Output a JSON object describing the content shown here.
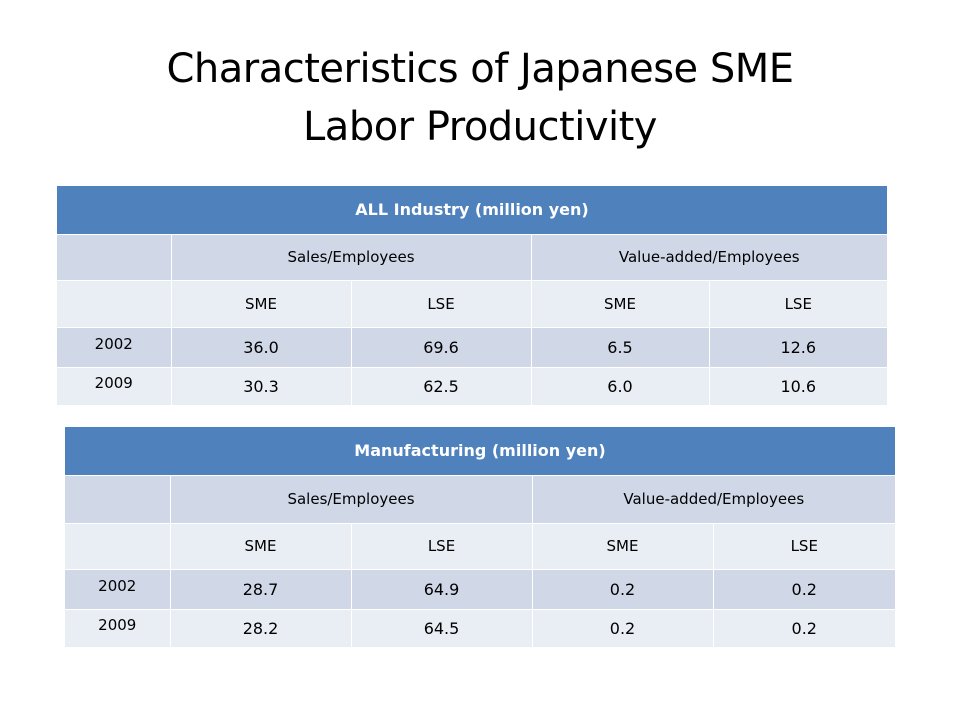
{
  "slide": {
    "title_line1": "Characteristics of Japanese SME",
    "title_line2": "Labor Productivity"
  },
  "tables": {
    "all_industry": {
      "title": "ALL Industry (million yen)",
      "group_headers": [
        "Sales/Employees",
        "Value-added/Employees"
      ],
      "sub_headers": [
        "SME",
        "LSE",
        "SME",
        "LSE"
      ],
      "rows": [
        {
          "year": "2002",
          "values": [
            "36.0",
            "69.6",
            "6.5",
            "12.6"
          ]
        },
        {
          "year": "2009",
          "values": [
            "30.3",
            "62.5",
            "6.0",
            "10.6"
          ]
        }
      ]
    },
    "manufacturing": {
      "title": "Manufacturing (million yen)",
      "group_headers": [
        "Sales/Employees",
        "Value-added/Employees"
      ],
      "sub_headers": [
        "SME",
        "LSE",
        "SME",
        "LSE"
      ],
      "rows": [
        {
          "year": "2002",
          "values": [
            "28.7",
            "64.9",
            "0.2",
            "0.2"
          ]
        },
        {
          "year": "2009",
          "values": [
            "28.2",
            "64.5",
            "0.2",
            "0.2"
          ]
        }
      ]
    }
  },
  "colors": {
    "header_blue": "#4f81bd",
    "band_dark": "#d0d8e8",
    "band_light": "#e9edf4"
  }
}
